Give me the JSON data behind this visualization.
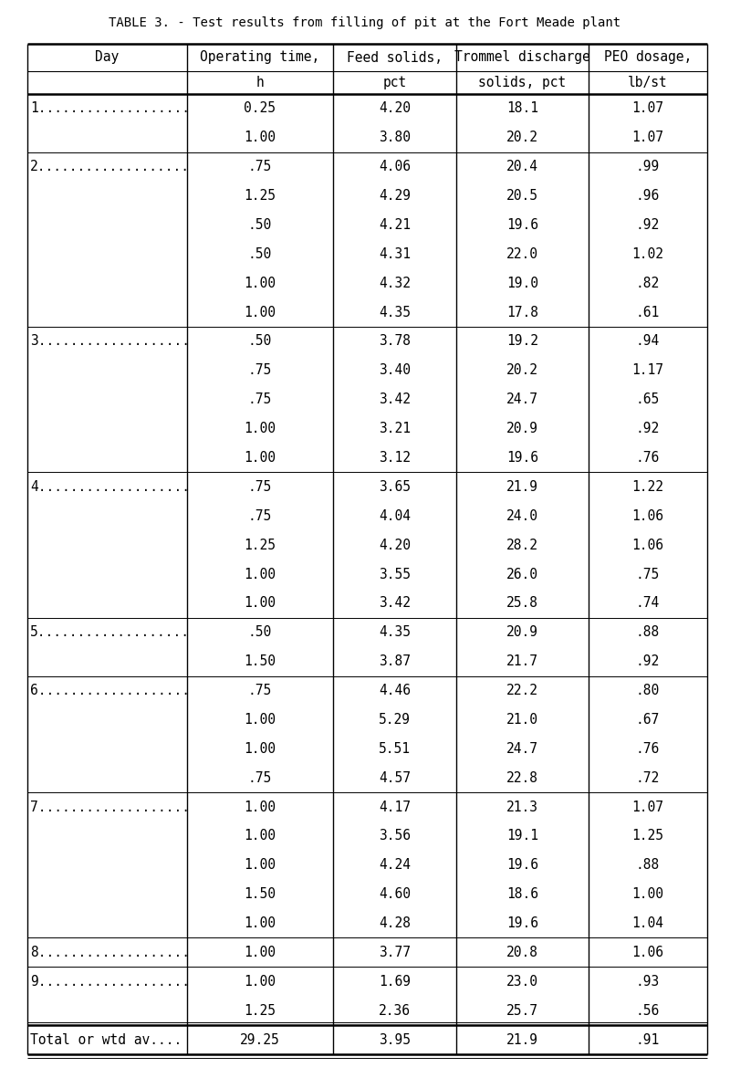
{
  "title": "TABLE 3. - Test results from filling of pit at the Fort Meade plant",
  "col_headers_line1": [
    "Day",
    "Operating time,",
    "Feed solids,",
    "Trommel discharge",
    "PEO dosage,"
  ],
  "col_headers_line2": [
    "",
    "h",
    "pct",
    "solids, pct",
    "lb/st"
  ],
  "rows": [
    [
      "1...................",
      "0.25",
      "4.20",
      "18.1",
      "1.07"
    ],
    [
      "",
      "1.00",
      "3.80",
      "20.2",
      "1.07"
    ],
    [
      "2...................",
      ".75",
      "4.06",
      "20.4",
      ".99"
    ],
    [
      "",
      "1.25",
      "4.29",
      "20.5",
      ".96"
    ],
    [
      "",
      ".50",
      "4.21",
      "19.6",
      ".92"
    ],
    [
      "",
      ".50",
      "4.31",
      "22.0",
      "1.02"
    ],
    [
      "",
      "1.00",
      "4.32",
      "19.0",
      ".82"
    ],
    [
      "",
      "1.00",
      "4.35",
      "17.8",
      ".61"
    ],
    [
      "3...................",
      ".50",
      "3.78",
      "19.2",
      ".94"
    ],
    [
      "",
      ".75",
      "3.40",
      "20.2",
      "1.17"
    ],
    [
      "",
      ".75",
      "3.42",
      "24.7",
      ".65"
    ],
    [
      "",
      "1.00",
      "3.21",
      "20.9",
      ".92"
    ],
    [
      "",
      "1.00",
      "3.12",
      "19.6",
      ".76"
    ],
    [
      "4...................",
      ".75",
      "3.65",
      "21.9",
      "1.22"
    ],
    [
      "",
      ".75",
      "4.04",
      "24.0",
      "1.06"
    ],
    [
      "",
      "1.25",
      "4.20",
      "28.2",
      "1.06"
    ],
    [
      "",
      "1.00",
      "3.55",
      "26.0",
      ".75"
    ],
    [
      "",
      "1.00",
      "3.42",
      "25.8",
      ".74"
    ],
    [
      "5...................",
      ".50",
      "4.35",
      "20.9",
      ".88"
    ],
    [
      "",
      "1.50",
      "3.87",
      "21.7",
      ".92"
    ],
    [
      "6...................",
      ".75",
      "4.46",
      "22.2",
      ".80"
    ],
    [
      "",
      "1.00",
      "5.29",
      "21.0",
      ".67"
    ],
    [
      "",
      "1.00",
      "5.51",
      "24.7",
      ".76"
    ],
    [
      "",
      ".75",
      "4.57",
      "22.8",
      ".72"
    ],
    [
      "7...................",
      "1.00",
      "4.17",
      "21.3",
      "1.07"
    ],
    [
      "",
      "1.00",
      "3.56",
      "19.1",
      "1.25"
    ],
    [
      "",
      "1.00",
      "4.24",
      "19.6",
      ".88"
    ],
    [
      "",
      "1.50",
      "4.60",
      "18.6",
      "1.00"
    ],
    [
      "",
      "1.00",
      "4.28",
      "19.6",
      "1.04"
    ],
    [
      "8...................",
      "1.00",
      "3.77",
      "20.8",
      "1.06"
    ],
    [
      "9...................",
      "1.00",
      "1.69",
      "23.0",
      ".93"
    ],
    [
      "",
      "1.25",
      "2.36",
      "25.7",
      ".56"
    ],
    [
      "Total or wtd av....",
      "29.25",
      "3.95",
      "21.9",
      ".91"
    ]
  ],
  "day_start_rows": [
    0,
    2,
    8,
    13,
    18,
    20,
    24,
    29,
    30
  ],
  "total_row_index": 32,
  "background_color": "#ffffff",
  "text_color": "#000000"
}
